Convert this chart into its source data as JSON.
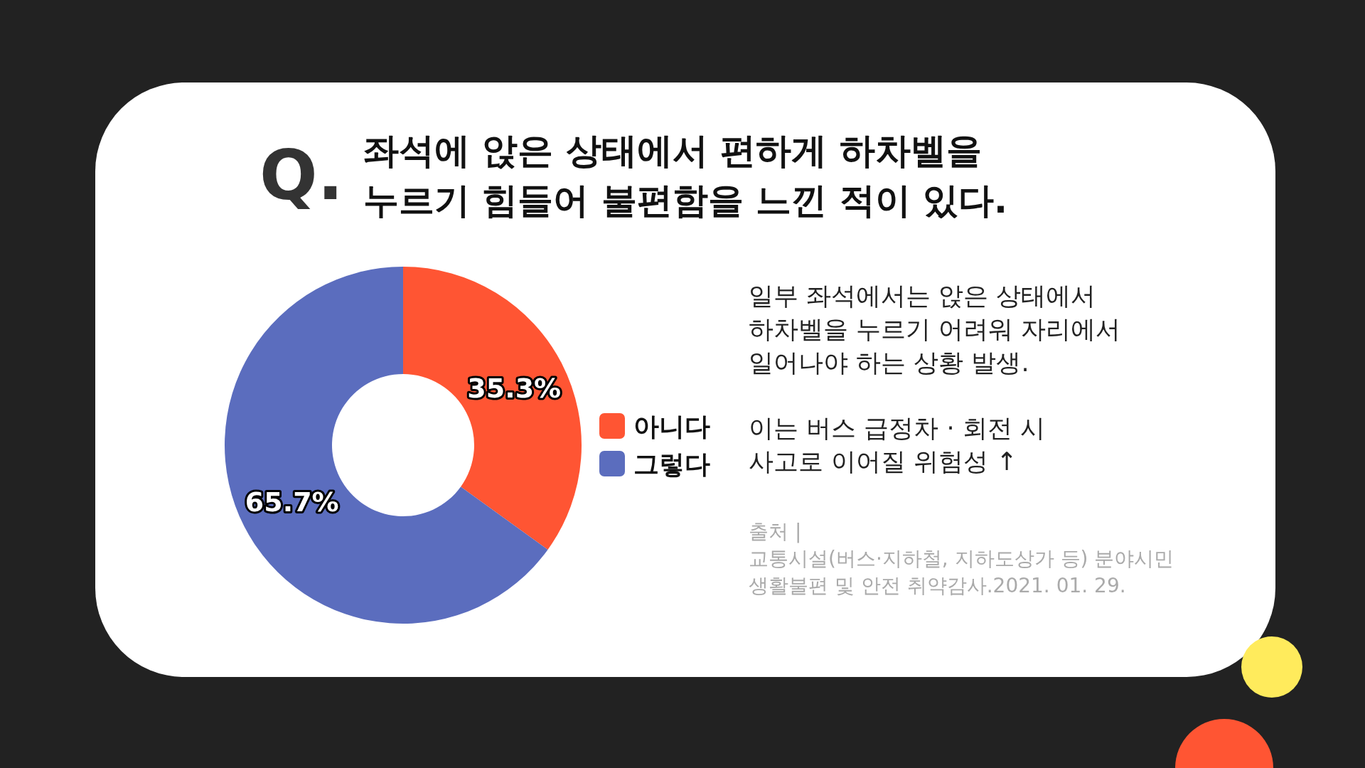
{
  "chart_data": {
    "type": "donut",
    "title": "좌석에 앉은 상태에서 편하게 하차벨을\n누르기 힘들어 불편함을 느낀 적이 있다.",
    "categories": [
      "아니다",
      "그렇다"
    ],
    "values": [
      35.3,
      65.7
    ],
    "colors": [
      "#ff5533",
      "#5b6dbe"
    ],
    "value_labels": [
      "35.3%",
      "65.7%"
    ],
    "legend": "right",
    "annotations": [
      "Q.",
      "일부 좌석에서는 앉은 상태에서\n하차벨을 누르기 어려워 자리에서\n일어나야 하는 상황 발생.",
      "이는 버스 급정차 · 회전 시\n사고로 이어질 위험성 ↑",
      "출처 |\n교통시설(버스·지하철, 지하도상가 등) 분야시민\n생활불편 및 안전 취약감사.2021. 01. 29."
    ]
  }
}
